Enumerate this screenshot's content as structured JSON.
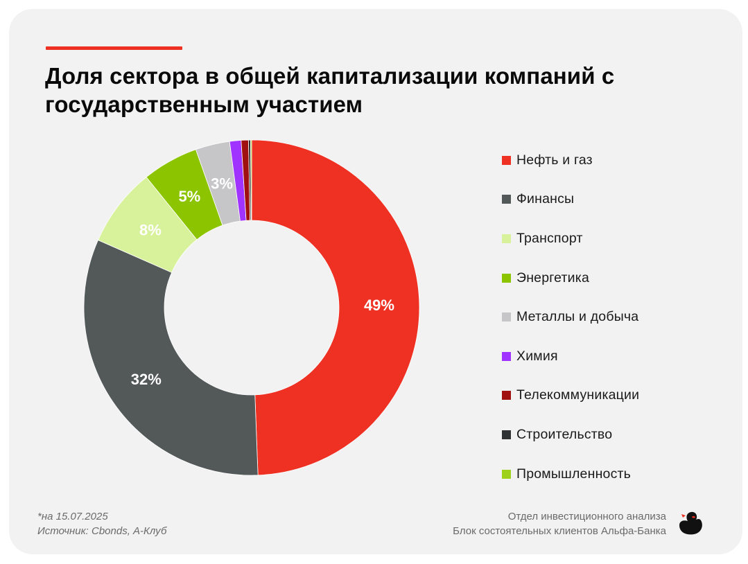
{
  "title": "Доля сектора в общей капитализации компаний с государственным участием",
  "colors": {
    "card_background": "#f2f2f2",
    "accent": "#ef3124",
    "label_text": "#ffffff"
  },
  "chart_data": {
    "type": "pie",
    "variant": "donut",
    "categories": [
      "Нефть и газ",
      "Финансы",
      "Транспорт",
      "Энергетика",
      "Металлы и добыча",
      "Химия",
      "Телекоммуникации",
      "Строительство",
      "Промышленность"
    ],
    "values": [
      49.4,
      32.2,
      7.6,
      5.4,
      3.3,
      1.1,
      0.7,
      0.2,
      0.1
    ],
    "data_labels": [
      "49%",
      "32%",
      "8%",
      "5%",
      "3%",
      "",
      "",
      "",
      ""
    ],
    "colors": [
      "#ef3124",
      "#535859",
      "#d8f29c",
      "#8dc400",
      "#c6c6c8",
      "#a033ff",
      "#a01010",
      "#2e3233",
      "#9dd11c"
    ],
    "legend_position": "right"
  },
  "footer": {
    "date_note": "*на 15.07.2025",
    "source": "Источник: Cbonds, А-Клуб",
    "org_line1": "Отдел инвестиционного анализа",
    "org_line2": "Блок состоятельных клиентов Альфа-Банка"
  },
  "logo": {
    "icon": "duck-logo-icon"
  }
}
